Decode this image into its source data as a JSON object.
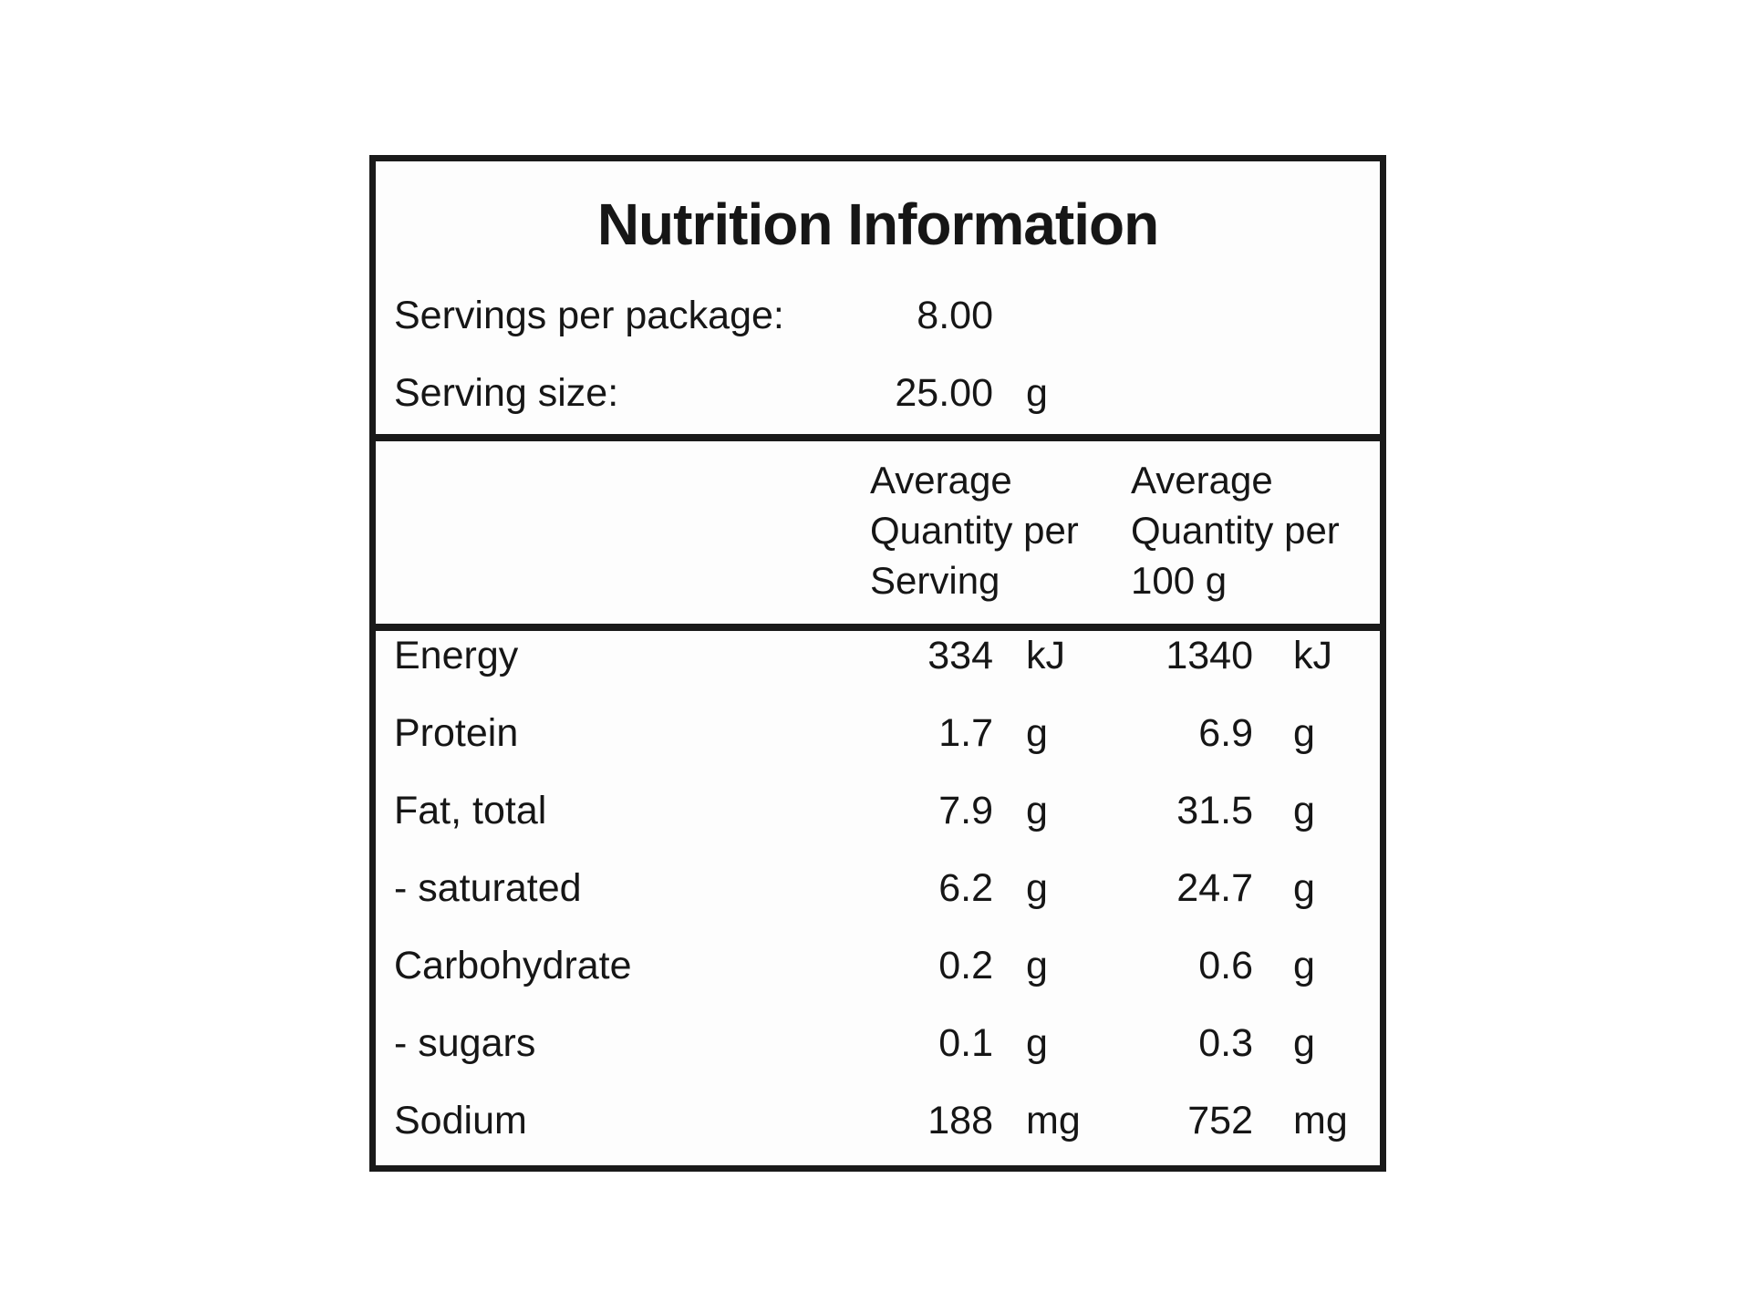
{
  "label": {
    "title": "Nutrition Information",
    "info": {
      "servings_per_package": {
        "label": "Servings per package:",
        "value": "8.00",
        "unit": ""
      },
      "serving_size": {
        "label": "Serving size:",
        "value": "25.00",
        "unit": "g"
      }
    },
    "columns": {
      "per_serving": {
        "line1": "Average",
        "line2": "Quantity per",
        "line3": "Serving"
      },
      "per_100g": {
        "line1": "Average",
        "line2": "Quantity per",
        "line3": "100 g"
      }
    },
    "rows": [
      {
        "name": "Energy",
        "per_serving": "334",
        "per_serving_unit": "kJ",
        "per_100g": "1340",
        "per_100g_unit": "kJ"
      },
      {
        "name": "Protein",
        "per_serving": "1.7",
        "per_serving_unit": "g",
        "per_100g": "6.9",
        "per_100g_unit": "g"
      },
      {
        "name": "Fat, total",
        "per_serving": "7.9",
        "per_serving_unit": "g",
        "per_100g": "31.5",
        "per_100g_unit": "g"
      },
      {
        "name": "- saturated",
        "per_serving": "6.2",
        "per_serving_unit": "g",
        "per_100g": "24.7",
        "per_100g_unit": "g"
      },
      {
        "name": "Carbohydrate",
        "per_serving": "0.2",
        "per_serving_unit": "g",
        "per_100g": "0.6",
        "per_100g_unit": "g"
      },
      {
        "name": "- sugars",
        "per_serving": "0.1",
        "per_serving_unit": "g",
        "per_100g": "0.3",
        "per_100g_unit": "g"
      },
      {
        "name": "Sodium",
        "per_serving": "188",
        "per_serving_unit": "mg",
        "per_100g": "752",
        "per_100g_unit": "mg"
      }
    ],
    "colors": {
      "text": "#161616",
      "border": "#1a1a1a",
      "panel_background": "#fdfdfd",
      "page_background": "#ffffff"
    }
  }
}
